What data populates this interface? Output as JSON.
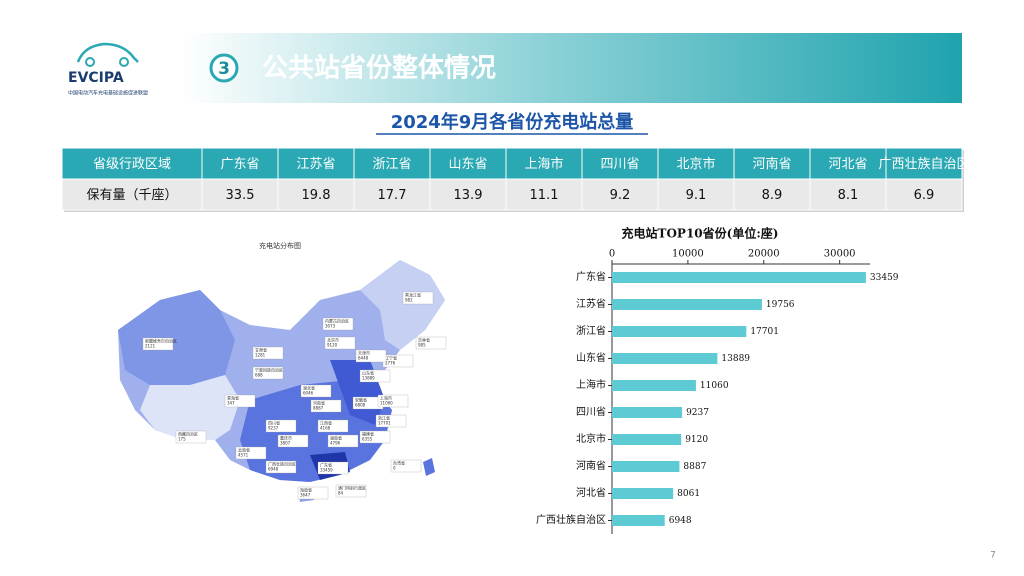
{
  "header": {
    "logo": "EVCIPA",
    "logo_caption": "中国电动汽车充电基础设施促进联盟",
    "section_number": "3",
    "section_title": "公共站省份整体情况"
  },
  "subtitle": "2024年9月各省份充电站总量",
  "table": {
    "header": [
      "省级行政区域",
      "广东省",
      "江苏省",
      "浙江省",
      "山东省",
      "上海市",
      "四川省",
      "北京市",
      "河南省",
      "河北省",
      "广西壮族自治区"
    ],
    "rows": [
      [
        "保有量（千座）",
        33.5,
        19.8,
        17.7,
        13.9,
        11.1,
        9.2,
        9.1,
        8.9,
        8.1,
        6.9
      ]
    ]
  },
  "map": {
    "title": "充电站分布图",
    "labels": [
      {
        "name": "新疆维吾尔自治区",
        "value": 2121
      },
      {
        "name": "西藏自治区",
        "value": 175
      },
      {
        "name": "青海省",
        "value": 347
      },
      {
        "name": "甘肃省",
        "value": 1281
      },
      {
        "name": "宁夏回族自治区",
        "value": 688
      },
      {
        "name": "内蒙古自治区",
        "value": 3073
      },
      {
        "name": "黑龙江省",
        "value": 982
      },
      {
        "name": "吉林省",
        "value": 985
      },
      {
        "name": "辽宁省",
        "value": 2776
      },
      {
        "name": "北京市",
        "value": 9120
      },
      {
        "name": "天津市",
        "value": 6448
      },
      {
        "name": "山东省",
        "value": 13889
      },
      {
        "name": "河南省",
        "value": 8887
      },
      {
        "name": "湖北省",
        "value": 6046
      },
      {
        "name": "安徽省",
        "value": 6808
      },
      {
        "name": "上海市",
        "value": 11060
      },
      {
        "name": "浙江省",
        "value": 17701
      },
      {
        "name": "四川省",
        "value": 9237
      },
      {
        "name": "重庆市",
        "value": 3807
      },
      {
        "name": "湖南省",
        "value": 4796
      },
      {
        "name": "江西省",
        "value": 4168
      },
      {
        "name": "福建省",
        "value": 6355
      },
      {
        "name": "云南省",
        "value": 4571
      },
      {
        "name": "广西壮族自治区",
        "value": 6948
      },
      {
        "name": "广东省",
        "value": 33459
      },
      {
        "name": "海南省",
        "value": 3647
      },
      {
        "name": "澳门特别行政区",
        "value": 84
      },
      {
        "name": "台湾省",
        "value": 0
      }
    ]
  },
  "chart_data": {
    "type": "bar",
    "orientation": "horizontal",
    "title": "充电站TOP10省份(单位:座)",
    "categories": [
      "广东省",
      "江苏省",
      "浙江省",
      "山东省",
      "上海市",
      "四川省",
      "北京市",
      "河南省",
      "河北省",
      "广西壮族自治区"
    ],
    "values": [
      33459,
      19756,
      17701,
      13889,
      11060,
      9237,
      9120,
      8887,
      8061,
      6948
    ],
    "color": "#5ecbd4",
    "xlim": [
      0,
      34000
    ],
    "xticks": [
      0,
      10000,
      20000,
      30000
    ]
  },
  "page_number": "7"
}
